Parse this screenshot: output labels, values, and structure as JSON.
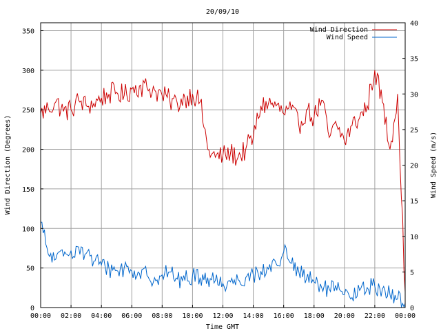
{
  "chart_data": {
    "type": "line",
    "title": "20/09/10",
    "xlabel": "Time GMT",
    "ylabel_left": "Wind Direction (Degrees)",
    "ylabel_right": "Wind Speed (m/s)",
    "x_ticks": [
      "00:00",
      "02:00",
      "04:00",
      "06:00",
      "08:00",
      "10:00",
      "12:00",
      "14:00",
      "16:00",
      "18:00",
      "20:00",
      "22:00",
      "00:00"
    ],
    "xlim_hours": [
      0,
      24
    ],
    "y_left_ticks": [
      0,
      50,
      100,
      150,
      200,
      250,
      300,
      350
    ],
    "ylim_left": [
      0,
      360
    ],
    "y_right_ticks": [
      0,
      5,
      10,
      15,
      20,
      25,
      30,
      35,
      40
    ],
    "ylim_right": [
      0,
      40
    ],
    "grid": true,
    "legend_position": "top-right",
    "series": [
      {
        "name": "Wind Direction",
        "axis": "left",
        "color": "#cc0000",
        "x_hours": [
          0,
          0.5,
          1,
          1.5,
          2,
          2.5,
          3,
          3.5,
          4,
          4.5,
          5,
          5.5,
          6,
          6.5,
          7,
          7.5,
          8,
          8.5,
          9,
          9.5,
          10,
          10.5,
          11,
          11.5,
          12,
          12.5,
          13,
          13.5,
          14,
          14.5,
          15,
          15.5,
          16,
          16.5,
          17,
          17.5,
          18,
          18.5,
          19,
          19.5,
          20,
          20.5,
          21,
          21.5,
          22,
          22.5,
          23,
          23.5,
          24
        ],
        "values": [
          245,
          252,
          260,
          248,
          250,
          262,
          255,
          258,
          265,
          270,
          272,
          268,
          276,
          280,
          278,
          275,
          268,
          262,
          258,
          265,
          270,
          260,
          200,
          190,
          192,
          195,
          190,
          200,
          215,
          255,
          258,
          255,
          245,
          250,
          230,
          250,
          240,
          262,
          215,
          230,
          210,
          230,
          240,
          255,
          300,
          260,
          200,
          270,
          20
        ]
      },
      {
        "name": "Wind Speed",
        "axis": "right",
        "color": "#0066cc",
        "x_hours": [
          0,
          0.5,
          1,
          1.5,
          2,
          2.5,
          3,
          3.5,
          4,
          4.5,
          5,
          5.5,
          6,
          6.5,
          7,
          7.5,
          8,
          8.5,
          9,
          9.5,
          10,
          10.5,
          11,
          11.5,
          12,
          12.5,
          13,
          13.5,
          14,
          14.5,
          15,
          15.5,
          16,
          16.5,
          17,
          17.5,
          18,
          18.5,
          19,
          19.5,
          20,
          20.5,
          21,
          21.5,
          22,
          22.5,
          23,
          23.5,
          24
        ],
        "values": [
          12,
          7.5,
          6.8,
          7.2,
          8,
          8.5,
          7.6,
          6.5,
          6,
          5.5,
          5.2,
          5.6,
          5.1,
          4.8,
          4.5,
          4.2,
          4.6,
          5,
          4,
          3.8,
          4.5,
          4.2,
          4.2,
          3.8,
          3.4,
          3.6,
          3.9,
          4.2,
          4.6,
          5.1,
          5.4,
          6.2,
          7.8,
          6.2,
          5,
          4,
          3.6,
          2.8,
          2.6,
          2.4,
          1.8,
          1.4,
          2.4,
          2.8,
          3,
          2.6,
          1.8,
          1.2,
          0.6
        ]
      }
    ]
  }
}
